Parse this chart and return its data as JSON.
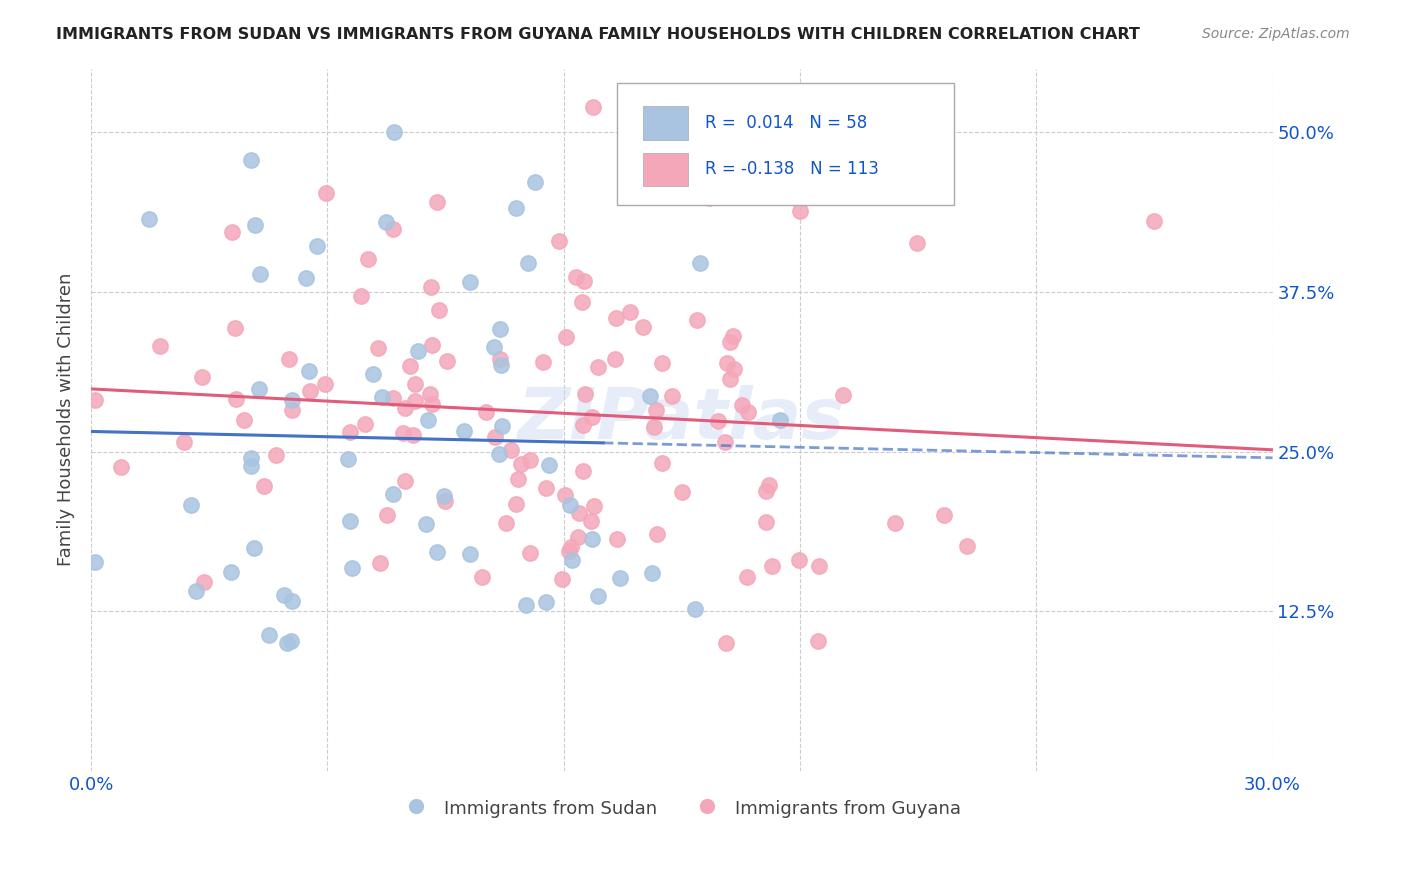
{
  "title": "IMMIGRANTS FROM SUDAN VS IMMIGRANTS FROM GUYANA FAMILY HOUSEHOLDS WITH CHILDREN CORRELATION CHART",
  "source": "Source: ZipAtlas.com",
  "ylabel_label": "Family Households with Children",
  "legend_bottom": [
    "Immigrants from Sudan",
    "Immigrants from Guyana"
  ],
  "sudan_R": 0.014,
  "sudan_N": 58,
  "guyana_R": -0.138,
  "guyana_N": 113,
  "xlim": [
    0.0,
    0.3
  ],
  "ylim": [
    0.0,
    0.55
  ],
  "yticks": [
    0.125,
    0.25,
    0.375,
    0.5
  ],
  "ytick_labels": [
    "12.5%",
    "25.0%",
    "37.5%",
    "50.0%"
  ],
  "xticks": [
    0.0,
    0.06,
    0.12,
    0.18,
    0.24,
    0.3
  ],
  "xtick_labels": [
    "0.0%",
    "",
    "",
    "",
    "",
    "30.0%"
  ],
  "sudan_color": "#a8c4e0",
  "guyana_color": "#f4a7b9",
  "sudan_line_color": "#4472c4",
  "guyana_line_color": "#e05c7a",
  "watermark": "ZIPatlas",
  "background_color": "#ffffff",
  "title_color": "#222222",
  "axis_label_color": "#1155cc",
  "grid_color": "#cccccc"
}
